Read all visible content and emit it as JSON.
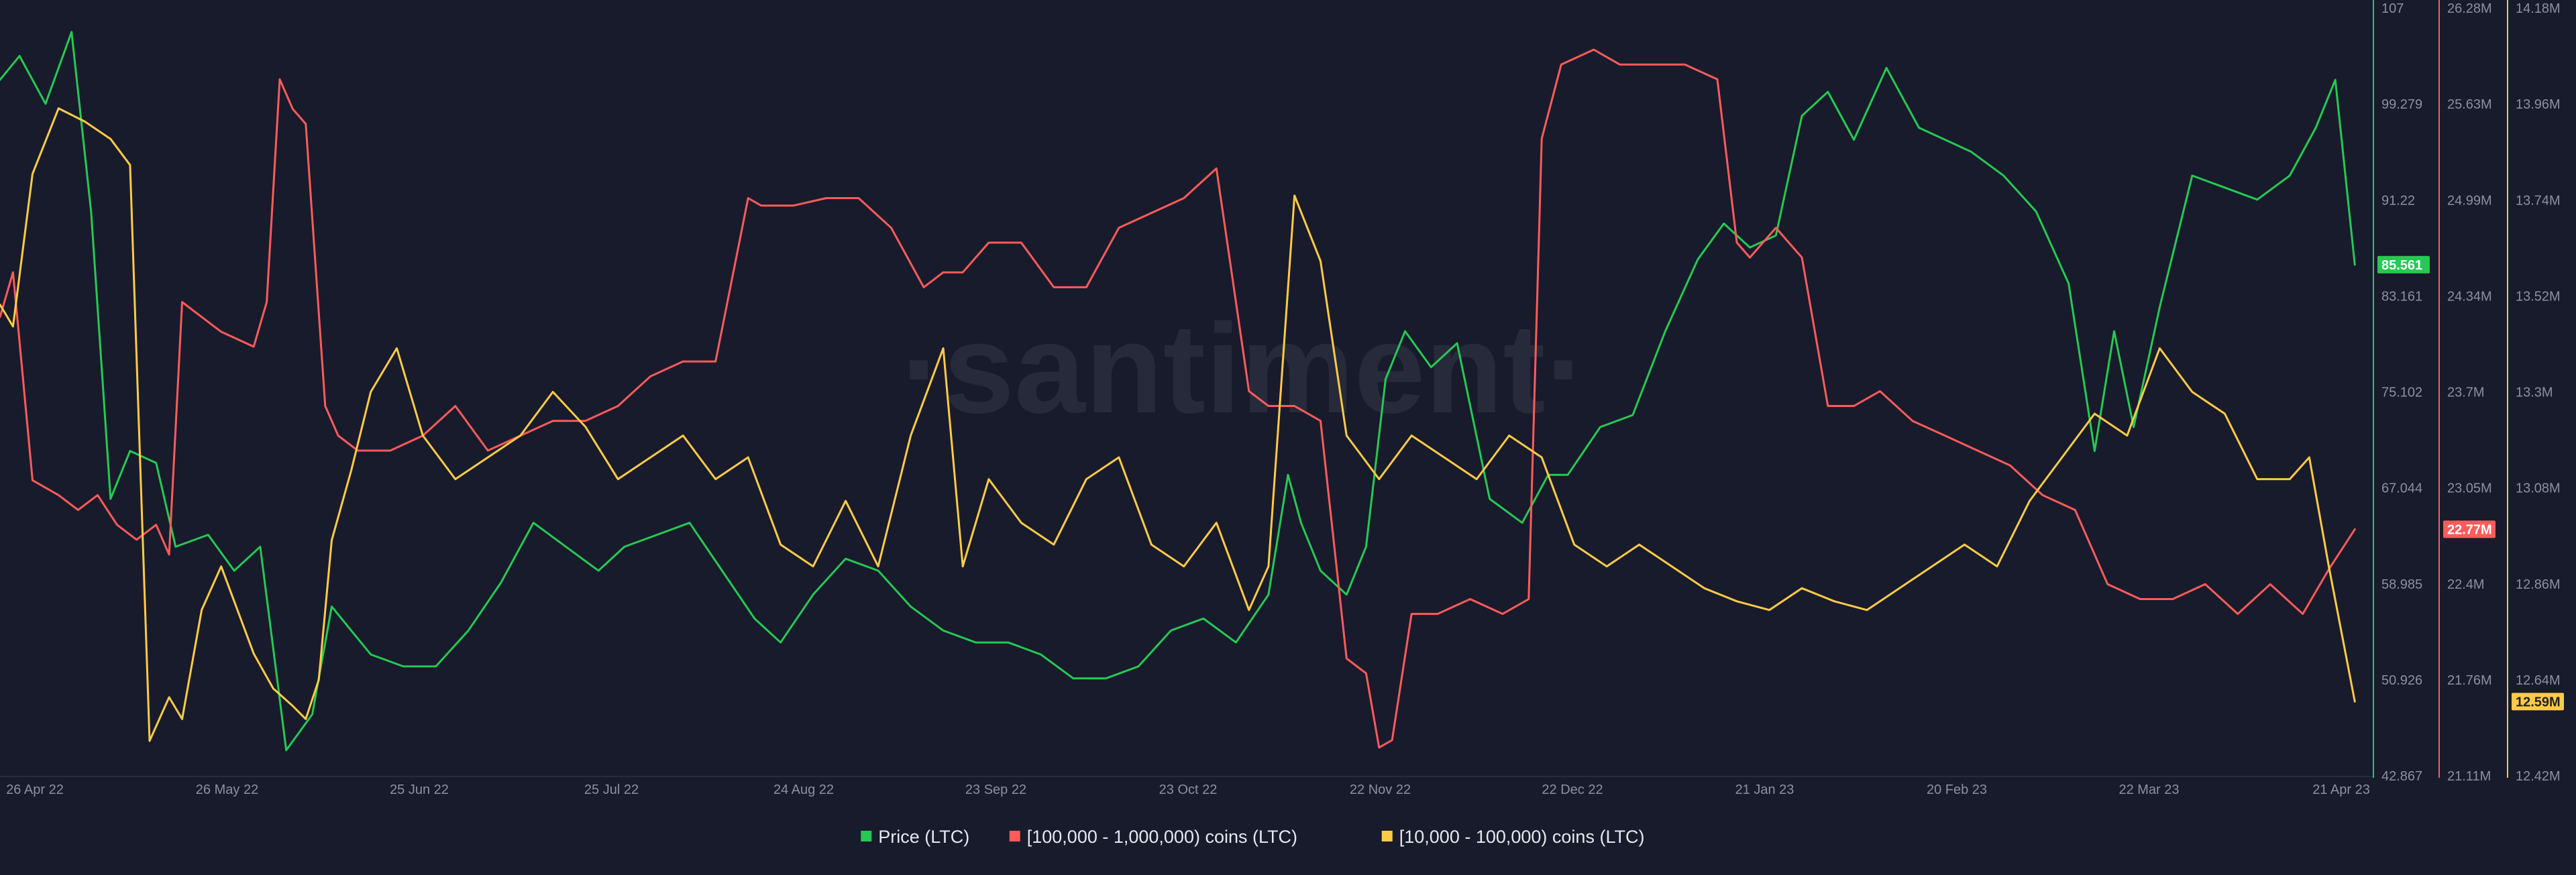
{
  "watermark": "·santiment·",
  "chart_data": {
    "type": "line",
    "x_ticks": [
      "26 Apr 22",
      "26 May 22",
      "25 Jun 22",
      "25 Jul 22",
      "24 Aug 22",
      "23 Sep 22",
      "23 Oct 22",
      "22 Nov 22",
      "22 Dec 22",
      "21 Jan 23",
      "20 Feb 23",
      "22 Mar 23",
      "21 Apr 23"
    ],
    "x_range": [
      "2022-04-24",
      "2023-04-22"
    ],
    "grid": false,
    "legend_position": "bottom-center",
    "axes": [
      {
        "id": "price",
        "color": "#26c953",
        "ticks": [
          "107",
          "99.279",
          "91.22",
          "83.161",
          "75.102",
          "67.044",
          "58.985",
          "50.926",
          "42.867"
        ],
        "range": [
          42.867,
          107
        ],
        "current_label": "85.561"
      },
      {
        "id": "tier1",
        "color": "#ff5b5b",
        "ticks": [
          "26.28M",
          "25.63M",
          "24.99M",
          "24.34M",
          "23.7M",
          "23.05M",
          "22.4M",
          "21.76M",
          "21.11M"
        ],
        "range": [
          21.11,
          26.28
        ],
        "current_label": "22.77M"
      },
      {
        "id": "tier2",
        "color": "#ffcb47",
        "ticks": [
          "14.18M",
          "13.96M",
          "13.74M",
          "13.52M",
          "13.3M",
          "13.08M",
          "12.86M",
          "12.64M",
          "12.42M"
        ],
        "range": [
          12.42,
          14.18
        ],
        "current_label": "12.59M"
      }
    ],
    "series": [
      {
        "name": "Price (LTC)",
        "axis": "price",
        "color": "#26c953",
        "x": [
          "2022-04-24",
          "2022-04-27",
          "2022-05-01",
          "2022-05-05",
          "2022-05-08",
          "2022-05-11",
          "2022-05-14",
          "2022-05-18",
          "2022-05-21",
          "2022-05-26",
          "2022-05-30",
          "2022-06-03",
          "2022-06-07",
          "2022-06-11",
          "2022-06-14",
          "2022-06-17",
          "2022-06-20",
          "2022-06-25",
          "2022-06-30",
          "2022-07-05",
          "2022-07-10",
          "2022-07-15",
          "2022-07-20",
          "2022-07-25",
          "2022-07-29",
          "2022-08-03",
          "2022-08-08",
          "2022-08-13",
          "2022-08-18",
          "2022-08-22",
          "2022-08-27",
          "2022-09-01",
          "2022-09-06",
          "2022-09-11",
          "2022-09-16",
          "2022-09-21",
          "2022-09-26",
          "2022-10-01",
          "2022-10-06",
          "2022-10-11",
          "2022-10-16",
          "2022-10-21",
          "2022-10-26",
          "2022-10-31",
          "2022-11-05",
          "2022-11-08",
          "2022-11-10",
          "2022-11-13",
          "2022-11-17",
          "2022-11-20",
          "2022-11-23",
          "2022-11-26",
          "2022-11-30",
          "2022-12-04",
          "2022-12-09",
          "2022-12-14",
          "2022-12-18",
          "2022-12-21",
          "2022-12-26",
          "2022-12-31",
          "2023-01-05",
          "2023-01-10",
          "2023-01-14",
          "2023-01-18",
          "2023-01-22",
          "2023-01-26",
          "2023-01-30",
          "2023-02-03",
          "2023-02-08",
          "2023-02-13",
          "2023-02-17",
          "2023-02-21",
          "2023-02-26",
          "2023-03-03",
          "2023-03-08",
          "2023-03-12",
          "2023-03-15",
          "2023-03-18",
          "2023-03-22",
          "2023-03-27",
          "2023-04-01",
          "2023-04-06",
          "2023-04-11",
          "2023-04-15",
          "2023-04-18",
          "2023-04-21"
        ],
        "values": [
          101,
          103,
          99,
          105,
          90,
          66,
          70,
          69,
          62,
          63,
          60,
          62,
          45,
          48,
          57,
          55,
          53,
          52,
          52,
          55,
          59,
          64,
          62,
          60,
          62,
          63,
          64,
          60,
          56,
          54,
          58,
          61,
          60,
          57,
          55,
          54,
          54,
          53,
          51,
          51,
          52,
          55,
          56,
          54,
          58,
          68,
          64,
          60,
          58,
          62,
          76,
          80,
          77,
          79,
          66,
          64,
          68,
          68,
          72,
          73,
          80,
          86,
          89,
          87,
          88,
          98,
          100,
          96,
          102,
          97,
          96,
          95,
          93,
          90,
          84,
          70,
          80,
          72,
          82,
          93,
          92,
          91,
          93,
          97,
          101,
          85.561
        ]
      },
      {
        "name": "[100,000  - 1,000,000) coins (LTC)",
        "axis": "tier1",
        "color": "#ff5b5b",
        "x": [
          "2022-04-24",
          "2022-04-26",
          "2022-04-29",
          "2022-05-03",
          "2022-05-06",
          "2022-05-09",
          "2022-05-12",
          "2022-05-15",
          "2022-05-18",
          "2022-05-20",
          "2022-05-22",
          "2022-05-25",
          "2022-05-28",
          "2022-06-02",
          "2022-06-04",
          "2022-06-06",
          "2022-06-08",
          "2022-06-10",
          "2022-06-13",
          "2022-06-15",
          "2022-06-18",
          "2022-06-23",
          "2022-06-28",
          "2022-07-03",
          "2022-07-08",
          "2022-07-13",
          "2022-07-18",
          "2022-07-23",
          "2022-07-28",
          "2022-08-02",
          "2022-08-07",
          "2022-08-12",
          "2022-08-17",
          "2022-08-19",
          "2022-08-24",
          "2022-08-29",
          "2022-09-03",
          "2022-09-08",
          "2022-09-13",
          "2022-09-16",
          "2022-09-19",
          "2022-09-23",
          "2022-09-28",
          "2022-10-03",
          "2022-10-08",
          "2022-10-13",
          "2022-10-18",
          "2022-10-23",
          "2022-10-28",
          "2022-11-02",
          "2022-11-05",
          "2022-11-09",
          "2022-11-13",
          "2022-11-17",
          "2022-11-20",
          "2022-11-22",
          "2022-11-24",
          "2022-11-27",
          "2022-12-01",
          "2022-12-06",
          "2022-12-11",
          "2022-12-15",
          "2022-12-17",
          "2022-12-20",
          "2022-12-25",
          "2022-12-29",
          "2023-01-03",
          "2023-01-08",
          "2023-01-13",
          "2023-01-16",
          "2023-01-18",
          "2023-01-22",
          "2023-01-26",
          "2023-01-30",
          "2023-02-03",
          "2023-02-07",
          "2023-02-12",
          "2023-02-17",
          "2023-02-22",
          "2023-02-27",
          "2023-03-04",
          "2023-03-09",
          "2023-03-14",
          "2023-03-19",
          "2023-03-24",
          "2023-03-29",
          "2023-04-03",
          "2023-04-08",
          "2023-04-13",
          "2023-04-17",
          "2023-04-21"
        ],
        "values": [
          24.2,
          24.5,
          23.1,
          23.0,
          22.9,
          23.0,
          22.8,
          22.7,
          22.8,
          22.6,
          24.3,
          24.2,
          24.1,
          24.0,
          24.3,
          25.8,
          25.6,
          25.5,
          23.6,
          23.4,
          23.3,
          23.3,
          23.4,
          23.6,
          23.3,
          23.4,
          23.5,
          23.5,
          23.6,
          23.8,
          23.9,
          23.9,
          25.0,
          24.95,
          24.95,
          25.0,
          25.0,
          24.8,
          24.4,
          24.5,
          24.5,
          24.7,
          24.7,
          24.4,
          24.4,
          24.8,
          24.9,
          25.0,
          25.2,
          23.7,
          23.6,
          23.6,
          23.5,
          21.9,
          21.8,
          21.3,
          21.35,
          22.2,
          22.2,
          22.3,
          22.2,
          22.3,
          25.4,
          25.9,
          26.0,
          25.9,
          25.9,
          25.9,
          25.8,
          24.7,
          24.6,
          24.8,
          24.6,
          23.6,
          23.6,
          23.7,
          23.5,
          23.4,
          23.3,
          23.2,
          23.0,
          22.9,
          22.4,
          22.3,
          22.3,
          22.4,
          22.2,
          22.4,
          22.2,
          22.5,
          22.77
        ]
      },
      {
        "name": "[10,000 - 100,000) coins (LTC)",
        "axis": "tier2",
        "color": "#ffcb47",
        "x": [
          "2022-04-24",
          "2022-04-26",
          "2022-04-29",
          "2022-05-03",
          "2022-05-07",
          "2022-05-11",
          "2022-05-14",
          "2022-05-17",
          "2022-05-20",
          "2022-05-22",
          "2022-05-25",
          "2022-05-28",
          "2022-06-02",
          "2022-06-05",
          "2022-06-08",
          "2022-06-10",
          "2022-06-12",
          "2022-06-14",
          "2022-06-17",
          "2022-06-20",
          "2022-06-24",
          "2022-06-28",
          "2022-07-03",
          "2022-07-08",
          "2022-07-13",
          "2022-07-18",
          "2022-07-23",
          "2022-07-28",
          "2022-08-02",
          "2022-08-07",
          "2022-08-12",
          "2022-08-17",
          "2022-08-22",
          "2022-08-27",
          "2022-09-01",
          "2022-09-06",
          "2022-09-11",
          "2022-09-16",
          "2022-09-19",
          "2022-09-23",
          "2022-09-28",
          "2022-10-03",
          "2022-10-08",
          "2022-10-13",
          "2022-10-18",
          "2022-10-23",
          "2022-10-28",
          "2022-11-02",
          "2022-11-05",
          "2022-11-09",
          "2022-11-13",
          "2022-11-17",
          "2022-11-22",
          "2022-11-27",
          "2022-12-02",
          "2022-12-07",
          "2022-12-12",
          "2022-12-17",
          "2022-12-22",
          "2022-12-27",
          "2023-01-01",
          "2023-01-06",
          "2023-01-11",
          "2023-01-16",
          "2023-01-21",
          "2023-01-26",
          "2023-01-31",
          "2023-02-05",
          "2023-02-10",
          "2023-02-15",
          "2023-02-20",
          "2023-02-25",
          "2023-03-02",
          "2023-03-07",
          "2023-03-12",
          "2023-03-17",
          "2023-03-22",
          "2023-03-27",
          "2023-04-01",
          "2023-04-06",
          "2023-04-11",
          "2023-04-14",
          "2023-04-17",
          "2023-04-21"
        ],
        "values": [
          13.5,
          13.45,
          13.8,
          13.95,
          13.92,
          13.88,
          13.82,
          12.5,
          12.6,
          12.55,
          12.8,
          12.9,
          12.7,
          12.62,
          12.58,
          12.55,
          12.64,
          12.96,
          13.12,
          13.3,
          13.4,
          13.2,
          13.1,
          13.15,
          13.2,
          13.3,
          13.22,
          13.1,
          13.15,
          13.2,
          13.1,
          13.15,
          12.95,
          12.9,
          13.05,
          12.9,
          13.2,
          13.4,
          12.9,
          13.1,
          13.0,
          12.95,
          13.1,
          13.15,
          12.95,
          12.9,
          13.0,
          12.8,
          12.9,
          13.75,
          13.6,
          13.2,
          13.1,
          13.2,
          13.15,
          13.1,
          13.2,
          13.15,
          12.95,
          12.9,
          12.95,
          12.9,
          12.85,
          12.82,
          12.8,
          12.85,
          12.82,
          12.8,
          12.85,
          12.9,
          12.95,
          12.9,
          13.05,
          13.15,
          13.25,
          13.2,
          13.4,
          13.3,
          13.25,
          13.1,
          13.1,
          13.15,
          12.9,
          12.59
        ]
      }
    ]
  }
}
